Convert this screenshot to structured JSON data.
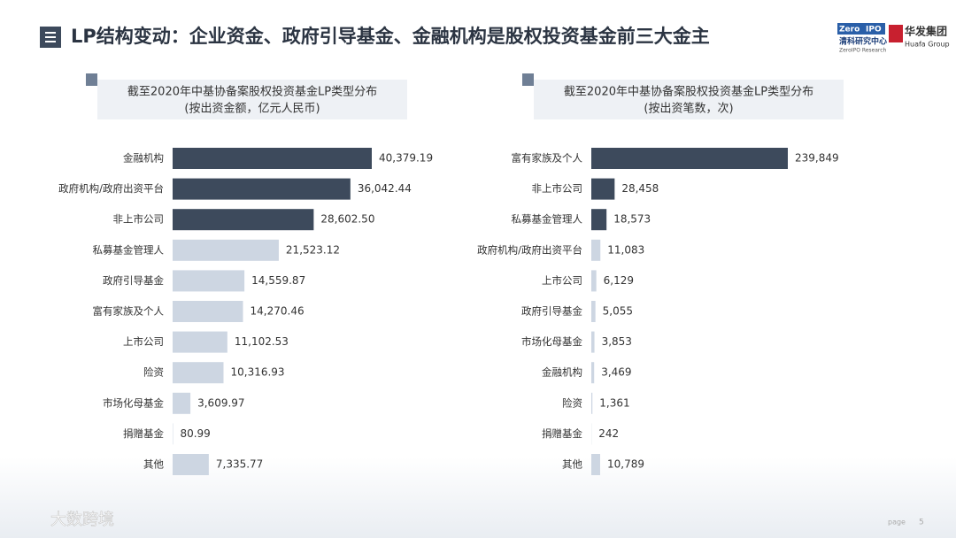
{
  "header": {
    "title": "LP结构变动：企业资金、政府引导基金、金融机构是股权投资基金前三大金主",
    "logo": {
      "zero": "Zero",
      "ipo": "IPO",
      "name": "清科研究中心",
      "name_en": "ZeroIPO Research",
      "group": "华发集团",
      "group_en": "Huafa Group"
    }
  },
  "chart_data": [
    {
      "type": "barh",
      "title": "截至2020年中基协备案股权投资基金LP类型分布",
      "subtitle": "(按出资金额，亿元人民币)",
      "categories": [
        "金融机构",
        "政府机构/政府出资平台",
        "非上市公司",
        "私募基金管理人",
        "政府引导基金",
        "富有家族及个人",
        "上市公司",
        "险资",
        "市场化母基金",
        "捐赠基金",
        "其他"
      ],
      "values": [
        40379.19,
        36042.44,
        28602.5,
        21523.12,
        14559.87,
        14270.46,
        11102.53,
        10316.93,
        3609.97,
        80.99,
        7335.77
      ],
      "value_labels": [
        "40,379.19",
        "36,042.44",
        "28,602.50",
        "21,523.12",
        "14,559.87",
        "14,270.46",
        "11,102.53",
        "10,316.93",
        "3,609.97",
        "80.99",
        "7,335.77"
      ],
      "colors": [
        "#3d4a5c",
        "#3d4a5c",
        "#3d4a5c",
        "#cdd6e2",
        "#cdd6e2",
        "#cdd6e2",
        "#cdd6e2",
        "#cdd6e2",
        "#cdd6e2",
        "#cdd6e2",
        "#cdd6e2"
      ]
    },
    {
      "type": "barh",
      "title": "截至2020年中基协备案股权投资基金LP类型分布",
      "subtitle": "(按出资笔数，次)",
      "categories": [
        "富有家族及个人",
        "非上市公司",
        "私募基金管理人",
        "政府机构/政府出资平台",
        "上市公司",
        "政府引导基金",
        "市场化母基金",
        "金融机构",
        "险资",
        "捐赠基金",
        "其他"
      ],
      "values": [
        239849,
        28458,
        18573,
        11083,
        6129,
        5055,
        3853,
        3469,
        1361,
        242,
        10789
      ],
      "value_labels": [
        "239,849",
        "28,458",
        "18,573",
        "11,083",
        "6,129",
        "5,055",
        "3,853",
        "3,469",
        "1,361",
        "242",
        "10,789"
      ],
      "colors": [
        "#3d4a5c",
        "#3d4a5c",
        "#3d4a5c",
        "#cdd6e2",
        "#cdd6e2",
        "#cdd6e2",
        "#cdd6e2",
        "#cdd6e2",
        "#cdd6e2",
        "#cdd6e2",
        "#cdd6e2"
      ]
    }
  ],
  "footer": {
    "watermark": "大数跨境",
    "page": "page",
    "number": "5"
  }
}
